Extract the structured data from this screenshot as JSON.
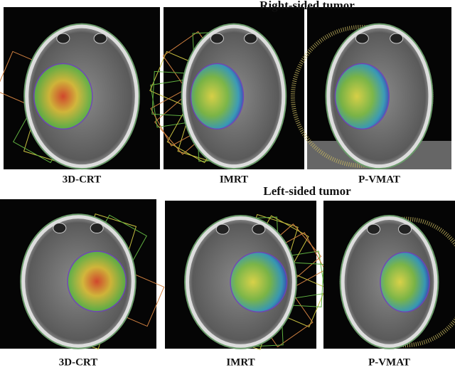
{
  "sections": [
    {
      "title": "Right-sided tumor",
      "panels": [
        {
          "label": "3D-CRT"
        },
        {
          "label": "IMRT"
        },
        {
          "label": "P-VMAT"
        }
      ]
    },
    {
      "title": "Left-sided tumor",
      "panels": [
        {
          "label": "3D-CRT"
        },
        {
          "label": "IMRT"
        },
        {
          "label": "P-VMAT"
        }
      ]
    }
  ]
}
